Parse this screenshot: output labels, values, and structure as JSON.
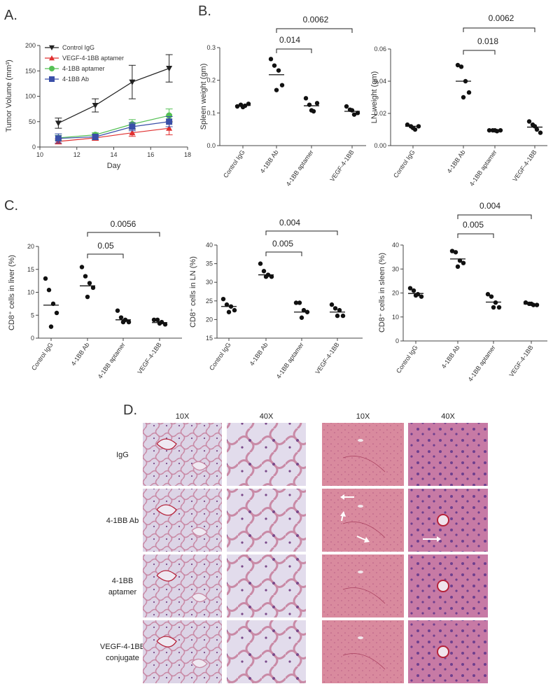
{
  "panels": {
    "a": "A.",
    "b": "B.",
    "c": "C.",
    "d": "D."
  },
  "chart_data": [
    {
      "id": "A",
      "type": "line",
      "xlabel": "Day",
      "ylabel": "Tumor Volume (mm³)",
      "xlim": [
        10,
        18
      ],
      "ylim": [
        0,
        200
      ],
      "xticks": [
        10,
        12,
        14,
        16,
        18
      ],
      "yticks": [
        0,
        50,
        100,
        150,
        200
      ],
      "legend_position": "top-left",
      "series": [
        {
          "name": "Control IgG",
          "color": "#222222",
          "marker": "triangle-down",
          "x": [
            11,
            13,
            15,
            17
          ],
          "y": [
            47,
            82,
            128,
            155
          ],
          "err": [
            10,
            13,
            33,
            27
          ]
        },
        {
          "name": "VEGF-4-1BB aptamer",
          "color": "#e03030",
          "marker": "triangle-up",
          "x": [
            11,
            13,
            15,
            17
          ],
          "y": [
            11,
            18,
            28,
            37
          ],
          "err": [
            5,
            5,
            7,
            13
          ]
        },
        {
          "name": "4-1BB aptamer",
          "color": "#55c055",
          "marker": "circle",
          "x": [
            11,
            13,
            15,
            17
          ],
          "y": [
            18,
            24,
            45,
            62
          ],
          "err": [
            5,
            4,
            9,
            13
          ]
        },
        {
          "name": "4-1BB Ab",
          "color": "#3a4fa8",
          "marker": "square",
          "x": [
            11,
            13,
            15,
            17
          ],
          "y": [
            17,
            20,
            40,
            50
          ],
          "err": [
            9,
            5,
            8,
            10
          ]
        }
      ]
    },
    {
      "id": "B1",
      "type": "scatter",
      "ylabel": "Spleen weight (gm)",
      "ylim": [
        0,
        0.3
      ],
      "yticks": [
        "0.0",
        "0.1",
        "0.2",
        "0.3"
      ],
      "categories": [
        "Control IgG",
        "4-1BB Ab",
        "4-1BB aptamer",
        "VEGF-4-1BB"
      ],
      "points": [
        [
          0.12,
          0.125,
          0.122,
          0.128,
          0.118
        ],
        [
          0.265,
          0.245,
          0.23,
          0.185,
          0.17
        ],
        [
          0.145,
          0.125,
          0.105,
          0.13,
          0.108
        ],
        [
          0.12,
          0.11,
          0.095,
          0.1,
          0.108
        ]
      ],
      "means": [
        0.123,
        0.217,
        0.122,
        0.105
      ],
      "comparisons": [
        {
          "from": 1,
          "to": 2,
          "label": "0.014"
        },
        {
          "from": 1,
          "to": 3,
          "label": "0.0062"
        }
      ]
    },
    {
      "id": "B2",
      "type": "scatter",
      "ylabel": "LN weight (gm)",
      "ylim": [
        0,
        0.06
      ],
      "yticks": [
        "0.00",
        "0.02",
        "0.04",
        "0.06"
      ],
      "categories": [
        "Control IgG",
        "4-1BB Ab",
        "4-1BB aptamer",
        "VEGF-4-1BB"
      ],
      "points": [
        [
          0.013,
          0.012,
          0.01,
          0.012,
          0.011
        ],
        [
          0.05,
          0.049,
          0.04,
          0.033,
          0.03
        ],
        [
          0.0095,
          0.0095,
          0.009,
          0.0095,
          0.0095
        ],
        [
          0.015,
          0.013,
          0.01,
          0.008,
          0.012
        ]
      ],
      "means": [
        0.012,
        0.04,
        0.0095,
        0.0115
      ],
      "comparisons": [
        {
          "from": 1,
          "to": 2,
          "label": "0.018"
        },
        {
          "from": 1,
          "to": 3,
          "label": "0.0062"
        }
      ]
    },
    {
      "id": "C1",
      "type": "scatter",
      "ylabel": "CD8⁺ cells in liver (%)",
      "ylim": [
        0,
        20
      ],
      "yticks": [
        "0",
        "5",
        "10",
        "15",
        "20"
      ],
      "categories": [
        "Control IgG",
        "4-1BB Ab",
        "4-1BB aptamer",
        "VEGF-4-1BB"
      ],
      "points": [
        [
          13,
          10.5,
          7.5,
          5.5,
          2.5
        ],
        [
          15.5,
          13.5,
          12,
          11,
          9
        ],
        [
          6,
          4.5,
          4,
          3.5,
          3.5
        ],
        [
          4,
          4,
          3.5,
          3,
          3.2
        ]
      ],
      "means": [
        7.2,
        11.4,
        4,
        3.4
      ],
      "comparisons": [
        {
          "from": 1,
          "to": 2,
          "label": "0.05"
        },
        {
          "from": 1,
          "to": 3,
          "label": "0.0056"
        }
      ]
    },
    {
      "id": "C2",
      "type": "scatter",
      "ylabel": "CD8⁺ cells in LN (%)",
      "ylim": [
        15,
        40
      ],
      "yticks": [
        "15",
        "20",
        "25",
        "30",
        "35",
        "40"
      ],
      "categories": [
        "Control IgG",
        "4-1BB Ab",
        "4-1BB aptamer",
        "VEGF-4-1BB"
      ],
      "points": [
        [
          25.5,
          24,
          23.5,
          22.5,
          22
        ],
        [
          35,
          33,
          32,
          31.5,
          31.5
        ],
        [
          24.5,
          24.5,
          22.5,
          22,
          20.5
        ],
        [
          24,
          23,
          22.5,
          21,
          21
        ]
      ],
      "means": [
        23.5,
        32,
        22,
        22
      ],
      "comparisons": [
        {
          "from": 1,
          "to": 2,
          "label": "0.005"
        },
        {
          "from": 1,
          "to": 3,
          "label": "0.004"
        }
      ]
    },
    {
      "id": "C3",
      "type": "scatter",
      "ylabel": "CD8⁺ cells in sleen (%)",
      "ylim": [
        0,
        40
      ],
      "yticks": [
        "0",
        "10",
        "20",
        "30",
        "40"
      ],
      "categories": [
        "Control IgG",
        "4-1BB Ab",
        "4-1BB aptamer",
        "VEGF-4-1BB"
      ],
      "points": [
        [
          22,
          21,
          19.5,
          18.5,
          19
        ],
        [
          37.5,
          37,
          33.5,
          32.5,
          31
        ],
        [
          19.5,
          18.5,
          16,
          14,
          14
        ],
        [
          16,
          15.5,
          15,
          15,
          15.5
        ]
      ],
      "means": [
        19.8,
        34.2,
        16.2,
        15.4
      ],
      "comparisons": [
        {
          "from": 1,
          "to": 2,
          "label": "0.005"
        },
        {
          "from": 1,
          "to": 3,
          "label": "0.004"
        }
      ]
    }
  ],
  "histology": {
    "column_labels": [
      "10X",
      "40X",
      "10X",
      "40X"
    ],
    "row_labels": [
      [
        "IgG"
      ],
      [
        "4-1BB Ab"
      ],
      [
        "4-1BB",
        "aptamer"
      ],
      [
        "VEGF-4-1BB",
        "conjugate"
      ]
    ],
    "colors": {
      "lung_bg": "#dcd4e6",
      "lung_tissue": "#c98aa6",
      "lung_dark": "#7a4a8a",
      "liver_bg": "#d98a9e",
      "liver_dark": "#b75a84",
      "vessel": "#b5233a"
    }
  }
}
